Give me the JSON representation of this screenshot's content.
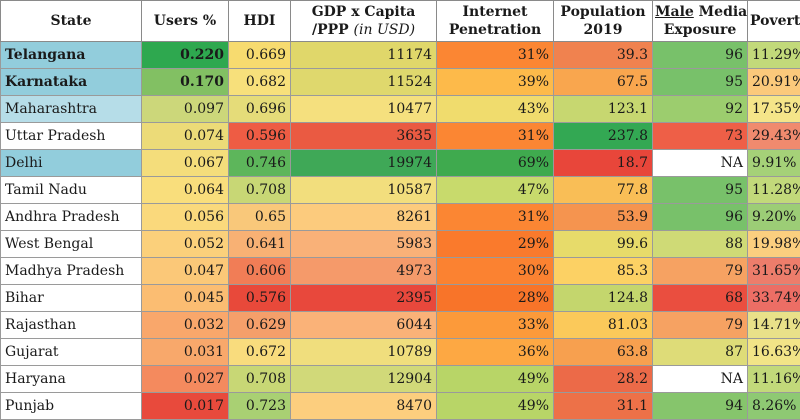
{
  "headers": {
    "state": "State",
    "users": "Users %",
    "hdi": "HDI",
    "gdp_line1": "GDP x Capita",
    "gdp_line2": "/PPP",
    "gdp_unit": "(in USD)",
    "internet_line1": "Internet",
    "internet_line2": "Penetration",
    "population_line1": "Population",
    "population_line2": "2019",
    "media_male": "Male",
    "media_line1_rest": " Media",
    "media_line2": "Exposure",
    "poverty": "Poverty %"
  },
  "colors": {
    "state_blue": "#92cddc",
    "state_light_blue": "#b6dde8",
    "white": "#ffffff"
  },
  "rows": [
    {
      "state": "Telangana",
      "users": "0.220",
      "hdi": "0.669",
      "gdp": "11174",
      "internet": "31%",
      "population": "39.3",
      "media": "96",
      "poverty": "11.29%",
      "bold": true,
      "colors": {
        "state": "#92cddc",
        "users": "#2ea84f",
        "hdi": "#f7db6f",
        "gdp": "#e0d76a",
        "internet": "#fb8633",
        "population": "#f0824f",
        "media": "#78c16a",
        "poverty": "#c2d97a"
      }
    },
    {
      "state": "Karnataka",
      "users": "0.170",
      "hdi": "0.682",
      "gdp": "11524",
      "internet": "39%",
      "population": "67.5",
      "media": "95",
      "poverty": "20.91%",
      "bold": true,
      "colors": {
        "state": "#92cddc",
        "users": "#82c063",
        "hdi": "#f7e07b",
        "gdp": "#dfd86d",
        "internet": "#fdba4a",
        "population": "#f9a64e",
        "media": "#78c16a",
        "poverty": "#fbc97b"
      }
    },
    {
      "state": "Maharashtra",
      "users": "0.097",
      "hdi": "0.696",
      "gdp": "10477",
      "internet": "43%",
      "population": "123.1",
      "media": "92",
      "poverty": "17.35%",
      "bold": false,
      "colors": {
        "state": "#b6dde8",
        "users": "#ccd77a",
        "hdi": "#e5dc79",
        "gdp": "#f5e07e",
        "internet": "#f0dc6d",
        "population": "#c7d770",
        "media": "#9ccd6e",
        "poverty": "#f5e589"
      }
    },
    {
      "state": "Uttar Pradesh",
      "users": "0.074",
      "hdi": "0.596",
      "gdp": "3635",
      "internet": "31%",
      "population": "237.8",
      "media": "73",
      "poverty": "29.43%",
      "bold": false,
      "colors": {
        "state": "#ffffff",
        "users": "#ecdb78",
        "hdi": "#ee5c44",
        "gdp": "#ea5a42",
        "internet": "#fb8633",
        "population": "#33a853",
        "media": "#ee5f47",
        "poverty": "#f08a6e"
      }
    },
    {
      "state": "Delhi",
      "users": "0.067",
      "hdi": "0.746",
      "gdp": "19974",
      "internet": "69%",
      "population": "18.7",
      "media": "NA",
      "poverty": "9.91%",
      "bold": false,
      "colors": {
        "state": "#92cddc",
        "users": "#f4dd7b",
        "hdi": "#5db65b",
        "gdp": "#3fa857",
        "internet": "#3faa4e",
        "population": "#e8463a",
        "media": "#ffffff",
        "poverty": "#a5d178"
      }
    },
    {
      "state": "Tamil Nadu",
      "users": "0.064",
      "hdi": "0.708",
      "gdp": "10587",
      "internet": "47%",
      "population": "77.8",
      "media": "95",
      "poverty": "11.28%",
      "bold": false,
      "colors": {
        "state": "#ffffff",
        "users": "#f9de7c",
        "hdi": "#c8d775",
        "gdp": "#f2de7d",
        "internet": "#c8da6c",
        "population": "#f9be56",
        "media": "#78c16a",
        "poverty": "#c2d97a"
      }
    },
    {
      "state": "Andhra Pradesh",
      "users": "0.056",
      "hdi": "0.65",
      "gdp": "8261",
      "internet": "31%",
      "population": "53.9",
      "media": "96",
      "poverty": "9.20%",
      "bold": false,
      "colors": {
        "state": "#ffffff",
        "users": "#fad97c",
        "hdi": "#f9c87a",
        "gdp": "#fccb7d",
        "internet": "#fb8633",
        "population": "#f5944f",
        "media": "#78c16a",
        "poverty": "#9ccd76"
      }
    },
    {
      "state": "West Bengal",
      "users": "0.052",
      "hdi": "0.641",
      "gdp": "5983",
      "internet": "29%",
      "population": "99.6",
      "media": "88",
      "poverty": "19.98%",
      "bold": false,
      "colors": {
        "state": "#ffffff",
        "users": "#fbd07b",
        "hdi": "#f8b174",
        "gdp": "#f9b178",
        "internet": "#fa7a2c",
        "population": "#e7db6a",
        "media": "#cfda76",
        "poverty": "#fbcf7f"
      }
    },
    {
      "state": "Madhya Pradesh",
      "users": "0.047",
      "hdi": "0.606",
      "gdp": "4973",
      "internet": "30%",
      "population": "85.3",
      "media": "79",
      "poverty": "31.65%",
      "bold": false,
      "colors": {
        "state": "#ffffff",
        "users": "#fbc878",
        "hdi": "#f17d56",
        "gdp": "#f59a6a",
        "internet": "#fb8231",
        "population": "#fcd164",
        "media": "#f6a262",
        "poverty": "#ed7d6b"
      }
    },
    {
      "state": "Bihar",
      "users": "0.045",
      "hdi": "0.576",
      "gdp": "2395",
      "internet": "28%",
      "population": "124.8",
      "media": "68",
      "poverty": "33.74%",
      "bold": false,
      "colors": {
        "state": "#ffffff",
        "users": "#fbbd72",
        "hdi": "#e8493a",
        "gdp": "#e8483c",
        "internet": "#f87429",
        "population": "#c4d66d",
        "media": "#ea4e3f",
        "poverty": "#ec6e65"
      }
    },
    {
      "state": "Rajasthan",
      "users": "0.032",
      "hdi": "0.629",
      "gdp": "6044",
      "internet": "33%",
      "population": "81.03",
      "media": "79",
      "poverty": "14.71%",
      "bold": false,
      "colors": {
        "state": "#ffffff",
        "users": "#f9a76b",
        "hdi": "#f59f6a",
        "gdp": "#fab278",
        "internet": "#fc9a3a",
        "population": "#fbc95a",
        "media": "#f6a262",
        "poverty": "#e9e189"
      }
    },
    {
      "state": "Gujarat",
      "users": "0.031",
      "hdi": "0.672",
      "gdp": "10789",
      "internet": "36%",
      "population": "63.8",
      "media": "87",
      "poverty": "16.63%",
      "bold": false,
      "colors": {
        "state": "#ffffff",
        "users": "#f8a86b",
        "hdi": "#f9dc7d",
        "gdp": "#f0de7d",
        "internet": "#fda843",
        "population": "#f7a04f",
        "media": "#dedc78",
        "poverty": "#f2e487"
      }
    },
    {
      "state": "Haryana",
      "users": "0.027",
      "hdi": "0.708",
      "gdp": "12904",
      "internet": "49%",
      "population": "28.2",
      "media": "NA",
      "poverty": "11.16%",
      "bold": false,
      "colors": {
        "state": "#ffffff",
        "users": "#f48a5e",
        "hdi": "#c8d775",
        "gdp": "#d1d979",
        "internet": "#b8d567",
        "population": "#ec6a48",
        "media": "#ffffff",
        "poverty": "#c2d97a"
      }
    },
    {
      "state": "Punjab",
      "users": "0.017",
      "hdi": "0.723",
      "gdp": "8470",
      "internet": "49%",
      "population": "31.1",
      "media": "94",
      "poverty": "8.26%",
      "bold": false,
      "colors": {
        "state": "#ffffff",
        "users": "#e84a3c",
        "hdi": "#a9d073",
        "gdp": "#fcce7e",
        "internet": "#b8d567",
        "population": "#ed7148",
        "media": "#86c56c",
        "poverty": "#8ec973"
      }
    }
  ]
}
